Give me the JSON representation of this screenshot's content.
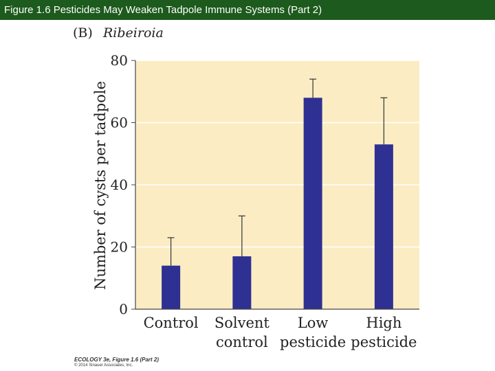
{
  "slide_title": "Figure 1.6  Pesticides May Weaken Tadpole Immune Systems (Part 2)",
  "panel": {
    "letter": "(B)",
    "organism": "Ribeiroia"
  },
  "chart_data": {
    "type": "bar",
    "categories": [
      [
        "Control"
      ],
      [
        "Solvent",
        "control"
      ],
      [
        "Low",
        "pesticide"
      ],
      [
        "High",
        "pesticide"
      ]
    ],
    "values": [
      14,
      17,
      68,
      53
    ],
    "error_upper": [
      23,
      30,
      74,
      68
    ],
    "title": "",
    "xlabel": "",
    "ylabel": "Number of cysts per tadpole",
    "ylim": [
      0,
      80
    ],
    "yticks": [
      "0",
      "20",
      "40",
      "60",
      "80"
    ],
    "grid": true,
    "colors": {
      "bar": "#2e3192",
      "plot_bg": "#fcecc3",
      "grid": "#ffffff",
      "axis": "#444444"
    }
  },
  "footer": {
    "line1": "ECOLOGY 3e, Figure 1.6 (Part 2)",
    "line2": "© 2014 Sinauer Associates, Inc."
  }
}
